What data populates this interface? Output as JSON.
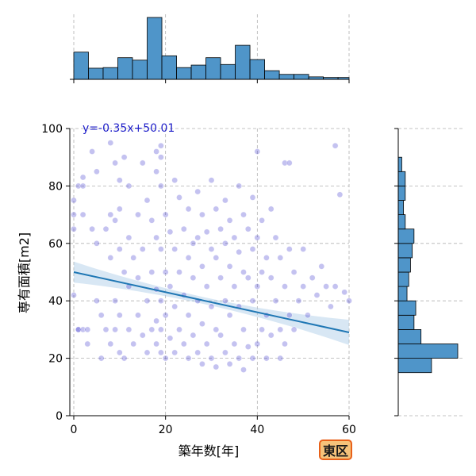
{
  "chart_data": {
    "type": "scatter",
    "xlabel": "築年数[年]",
    "ylabel": "専有面積[m2]",
    "xlim": [
      -1,
      60
    ],
    "ylim": [
      0,
      100
    ],
    "xticks": [
      0,
      20,
      40,
      60
    ],
    "yticks": [
      0,
      20,
      40,
      60,
      80,
      100
    ],
    "grid": true,
    "regression": {
      "label": "y=-0.35x+50.01",
      "slope": -0.35,
      "intercept": 50.01,
      "x_range": [
        0,
        60
      ],
      "line_color": "#1f77b4",
      "band_color": "#a9c9e6"
    },
    "point_color": "#2a23c8",
    "points": [
      [
        0,
        42
      ],
      [
        0,
        75
      ],
      [
        0,
        70
      ],
      [
        0,
        65
      ],
      [
        1,
        30
      ],
      [
        1,
        30
      ],
      [
        1,
        80
      ],
      [
        2,
        83
      ],
      [
        2,
        80
      ],
      [
        2,
        70
      ],
      [
        2,
        30
      ],
      [
        3,
        30
      ],
      [
        3,
        25
      ],
      [
        4,
        92
      ],
      [
        4,
        65
      ],
      [
        5,
        85
      ],
      [
        5,
        60
      ],
      [
        5,
        40
      ],
      [
        6,
        35
      ],
      [
        6,
        20
      ],
      [
        7,
        30
      ],
      [
        7,
        65
      ],
      [
        8,
        95
      ],
      [
        8,
        70
      ],
      [
        8,
        55
      ],
      [
        8,
        25
      ],
      [
        9,
        88
      ],
      [
        9,
        68
      ],
      [
        9,
        40
      ],
      [
        9,
        30
      ],
      [
        10,
        82
      ],
      [
        10,
        72
      ],
      [
        10,
        58
      ],
      [
        10,
        35
      ],
      [
        10,
        22
      ],
      [
        11,
        90
      ],
      [
        11,
        50
      ],
      [
        11,
        20
      ],
      [
        12,
        80
      ],
      [
        12,
        62
      ],
      [
        12,
        45
      ],
      [
        12,
        30
      ],
      [
        13,
        55
      ],
      [
        13,
        25
      ],
      [
        14,
        70
      ],
      [
        14,
        48
      ],
      [
        14,
        35
      ],
      [
        15,
        88
      ],
      [
        15,
        58
      ],
      [
        15,
        28
      ],
      [
        16,
        75
      ],
      [
        16,
        40
      ],
      [
        16,
        22
      ],
      [
        17,
        68
      ],
      [
        17,
        50
      ],
      [
        17,
        30
      ],
      [
        18,
        92
      ],
      [
        18,
        85
      ],
      [
        18,
        62
      ],
      [
        18,
        44
      ],
      [
        18,
        33
      ],
      [
        18,
        25
      ],
      [
        19,
        94
      ],
      [
        19,
        90
      ],
      [
        19,
        80
      ],
      [
        19,
        58
      ],
      [
        19,
        40
      ],
      [
        19,
        30
      ],
      [
        19,
        22
      ],
      [
        20,
        70
      ],
      [
        20,
        50
      ],
      [
        20,
        35
      ],
      [
        20,
        20
      ],
      [
        21,
        64
      ],
      [
        21,
        45
      ],
      [
        21,
        27
      ],
      [
        22,
        82
      ],
      [
        22,
        58
      ],
      [
        22,
        38
      ],
      [
        22,
        22
      ],
      [
        23,
        76
      ],
      [
        23,
        50
      ],
      [
        23,
        30
      ],
      [
        24,
        65
      ],
      [
        24,
        42
      ],
      [
        24,
        25
      ],
      [
        25,
        72
      ],
      [
        25,
        55
      ],
      [
        25,
        35
      ],
      [
        25,
        20
      ],
      [
        26,
        60
      ],
      [
        26,
        48
      ],
      [
        26,
        28
      ],
      [
        27,
        78
      ],
      [
        27,
        62
      ],
      [
        27,
        40
      ],
      [
        27,
        22
      ],
      [
        28,
        70
      ],
      [
        28,
        52
      ],
      [
        28,
        32
      ],
      [
        28,
        18
      ],
      [
        29,
        64
      ],
      [
        29,
        45
      ],
      [
        29,
        25
      ],
      [
        30,
        82
      ],
      [
        30,
        58
      ],
      [
        30,
        38
      ],
      [
        30,
        20
      ],
      [
        31,
        72
      ],
      [
        31,
        55
      ],
      [
        31,
        30
      ],
      [
        31,
        17
      ],
      [
        32,
        65
      ],
      [
        32,
        48
      ],
      [
        32,
        28
      ],
      [
        33,
        75
      ],
      [
        33,
        60
      ],
      [
        33,
        40
      ],
      [
        33,
        22
      ],
      [
        34,
        68
      ],
      [
        34,
        52
      ],
      [
        34,
        35
      ],
      [
        34,
        18
      ],
      [
        35,
        62
      ],
      [
        35,
        45
      ],
      [
        35,
        25
      ],
      [
        36,
        80
      ],
      [
        36,
        57
      ],
      [
        36,
        38
      ],
      [
        36,
        20
      ],
      [
        37,
        70
      ],
      [
        37,
        50
      ],
      [
        37,
        30
      ],
      [
        37,
        16
      ],
      [
        38,
        65
      ],
      [
        38,
        48
      ],
      [
        38,
        24
      ],
      [
        39,
        76
      ],
      [
        39,
        58
      ],
      [
        39,
        40
      ],
      [
        39,
        20
      ],
      [
        40,
        92
      ],
      [
        40,
        62
      ],
      [
        40,
        45
      ],
      [
        40,
        25
      ],
      [
        41,
        68
      ],
      [
        41,
        50
      ],
      [
        41,
        30
      ],
      [
        42,
        55
      ],
      [
        42,
        35
      ],
      [
        42,
        20
      ],
      [
        43,
        72
      ],
      [
        43,
        48
      ],
      [
        43,
        28
      ],
      [
        44,
        62
      ],
      [
        44,
        40
      ],
      [
        45,
        55
      ],
      [
        45,
        30
      ],
      [
        45,
        20
      ],
      [
        46,
        88
      ],
      [
        46,
        45
      ],
      [
        46,
        25
      ],
      [
        47,
        88
      ],
      [
        47,
        58
      ],
      [
        47,
        35
      ],
      [
        48,
        50
      ],
      [
        48,
        30
      ],
      [
        49,
        40
      ],
      [
        50,
        58
      ],
      [
        50,
        45
      ],
      [
        51,
        35
      ],
      [
        52,
        48
      ],
      [
        53,
        42
      ],
      [
        54,
        52
      ],
      [
        55,
        45
      ],
      [
        56,
        38
      ],
      [
        57,
        94
      ],
      [
        57,
        45
      ],
      [
        58,
        77
      ],
      [
        59,
        43
      ],
      [
        60,
        40
      ]
    ],
    "x_histogram": {
      "bin_edges": [
        0,
        3.2,
        6.4,
        9.6,
        12.8,
        16,
        19.2,
        22.4,
        25.6,
        28.8,
        32,
        35.2,
        38.4,
        41.6,
        44.8,
        48,
        51.2,
        54.4,
        57.6,
        60
      ],
      "counts": [
        44,
        18,
        19,
        35,
        31,
        100,
        38,
        19,
        23,
        35,
        24,
        55,
        32,
        14,
        8,
        8,
        4,
        3,
        3
      ]
    },
    "y_histogram": {
      "bin_edges": [
        15,
        20,
        25,
        30,
        35,
        40,
        45,
        50,
        55,
        60,
        65,
        70,
        75,
        80,
        85,
        90
      ],
      "counts": [
        38,
        68,
        26,
        18,
        20,
        10,
        12,
        14,
        16,
        18,
        8,
        6,
        8,
        8,
        4
      ]
    },
    "annotation_badge": "東区",
    "bar_color": "#4f95c9"
  }
}
